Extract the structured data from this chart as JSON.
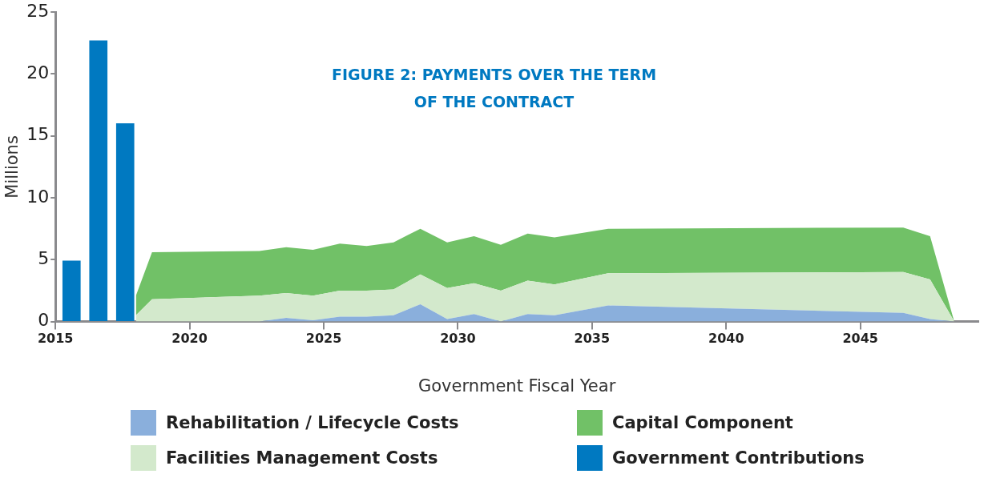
{
  "chart_data": {
    "type": "area",
    "title": "FIGURE 2: PAYMENTS OVER THE TERM OF THE CONTRACT",
    "xlabel": "Government Fiscal Year",
    "ylabel": "Millions",
    "stacked": true,
    "xlim": [
      2015,
      2049.4
    ],
    "xticks": [
      2015,
      2020,
      2025,
      2030,
      2035,
      2040,
      2045
    ],
    "ylim": [
      0,
      25
    ],
    "yticks": [
      0,
      5,
      10,
      15,
      20,
      25
    ],
    "grid": false,
    "legend": "bottom",
    "marker": "none",
    "x": [
      2015.6,
      2016.6,
      2017.6,
      2018.0,
      2018.6,
      2022.6,
      2023.6,
      2024.6,
      2025.6,
      2026.6,
      2027.6,
      2028.6,
      2029.6,
      2030.6,
      2031.6,
      2032.6,
      2033.6,
      2035.6,
      2046.6,
      2047.6,
      2048.5
    ],
    "series": [
      {
        "name": "Rehabilitation / Lifecycle Costs",
        "color": "#8aafdc",
        "values": [
          null,
          null,
          null,
          0,
          0,
          0,
          0.3,
          0.1,
          0.4,
          0.4,
          0.5,
          1.4,
          0.2,
          0.6,
          0,
          0.6,
          0.5,
          1.3,
          0.7,
          0.2,
          0
        ]
      },
      {
        "name": "Facilities Management Costs",
        "color": "#d3e9cc",
        "values": [
          null,
          null,
          null,
          0.5,
          1.8,
          2.1,
          2.0,
          2.0,
          2.1,
          2.1,
          2.1,
          2.4,
          2.5,
          2.5,
          2.5,
          2.7,
          2.5,
          2.6,
          3.3,
          3.2,
          0
        ]
      },
      {
        "name": "Capital Component",
        "color": "#71c167",
        "values": [
          null,
          null,
          null,
          1.6,
          3.8,
          3.6,
          3.7,
          3.7,
          3.8,
          3.6,
          3.8,
          3.7,
          3.7,
          3.8,
          3.7,
          3.8,
          3.8,
          3.6,
          3.6,
          3.5,
          0
        ]
      },
      {
        "name": "Government Contributions",
        "type": "bar",
        "color": "#0079c1",
        "values": [
          4.9,
          22.7,
          16.0,
          null,
          null,
          null,
          null,
          null,
          null,
          null,
          null,
          null,
          null,
          null,
          null,
          null,
          null,
          null,
          null,
          null,
          null
        ]
      }
    ]
  }
}
